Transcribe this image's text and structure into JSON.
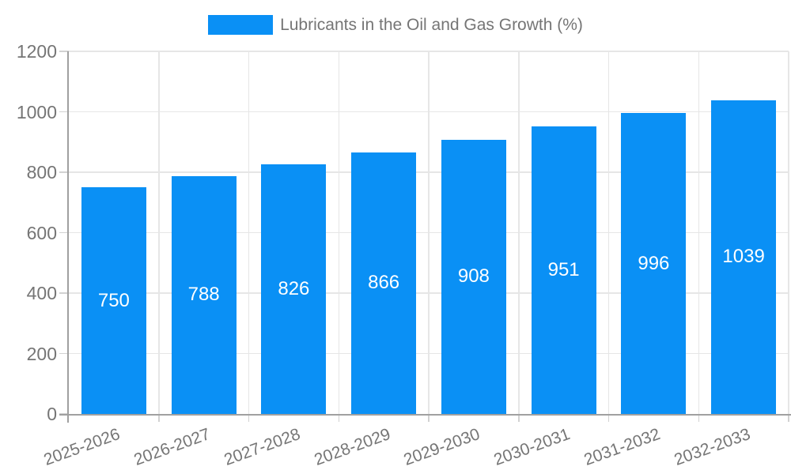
{
  "chart": {
    "legend": {
      "label": "Lubricants in the Oil and Gas Growth (%)"
    }
  },
  "colors": {
    "bar": "#0a90f5",
    "grid": "#e6e6e6",
    "tick": "#d2d2d2",
    "axis": "#a0a0a0",
    "label": "#757575",
    "value_label": "#ffffff",
    "background": "#ffffff"
  },
  "chart_data": {
    "type": "bar",
    "title": "Lubricants in the Oil and Gas Growth (%)",
    "categories": [
      "2025-2026",
      "2026-2027",
      "2027-2028",
      "2028-2029",
      "2029-2030",
      "2030-2031",
      "2031-2032",
      "2032-2033"
    ],
    "series": [
      {
        "name": "Lubricants in the Oil and Gas Growth (%)",
        "values": [
          750,
          788,
          826,
          866,
          908,
          951,
          996,
          1039
        ],
        "color": "#0a90f5"
      }
    ],
    "xlabel": "",
    "ylabel": "",
    "ylim": [
      0,
      1200
    ],
    "yticks": [
      0,
      200,
      400,
      600,
      800,
      1000,
      1200
    ],
    "grid": true,
    "legend_position": "top-center",
    "value_labels": "inside-center-white",
    "x_tick_rotation_deg": -20
  }
}
